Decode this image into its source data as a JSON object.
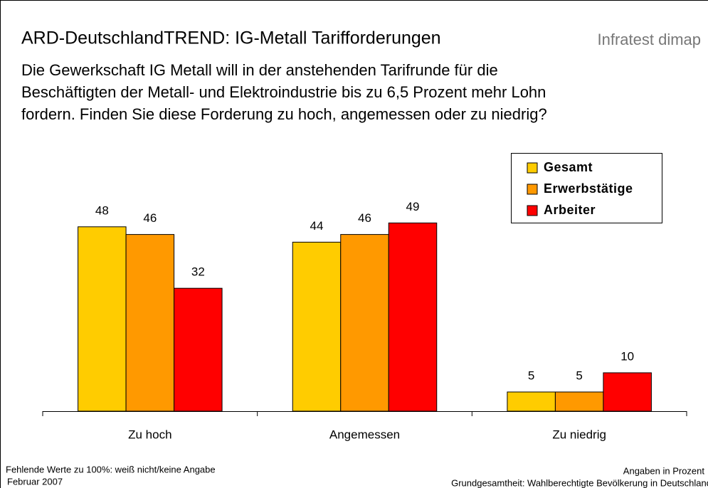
{
  "chart_data": {
    "type": "bar",
    "title": "ARD-DeutschlandTREND: IG-Metall Tarifforderungen",
    "brand": "Infratest dimap",
    "subtitle": [
      "Die Gewerkschaft IG Metall will in der anstehenden Tarifrunde für die",
      "Beschäftigten der Metall- und Elektroindustrie bis zu 6,5 Prozent mehr Lohn",
      "fordern. Finden Sie diese Forderung zu hoch, angemessen oder zu niedrig?"
    ],
    "categories": [
      "Zu hoch",
      "Angemessen",
      "Zu niedrig"
    ],
    "series": [
      {
        "name": "Gesamt",
        "color": "#FFCC00",
        "values": [
          48,
          44,
          5
        ]
      },
      {
        "name": "Erwerbstätige",
        "color": "#FF9900",
        "values": [
          46,
          46,
          5
        ]
      },
      {
        "name": "Arbeiter",
        "color": "#FF0000",
        "values": [
          32,
          49,
          10
        ]
      }
    ],
    "legend": "upper right",
    "footnotes_left": [
      "Fehlende Werte zu 100%: weiß nicht/keine Angabe",
      "Februar 2007"
    ],
    "footnotes_right": [
      "Angaben in Prozent",
      "Grundgesamtheit: Wahlberechtigte Bevölkerung in Deutschland"
    ]
  }
}
